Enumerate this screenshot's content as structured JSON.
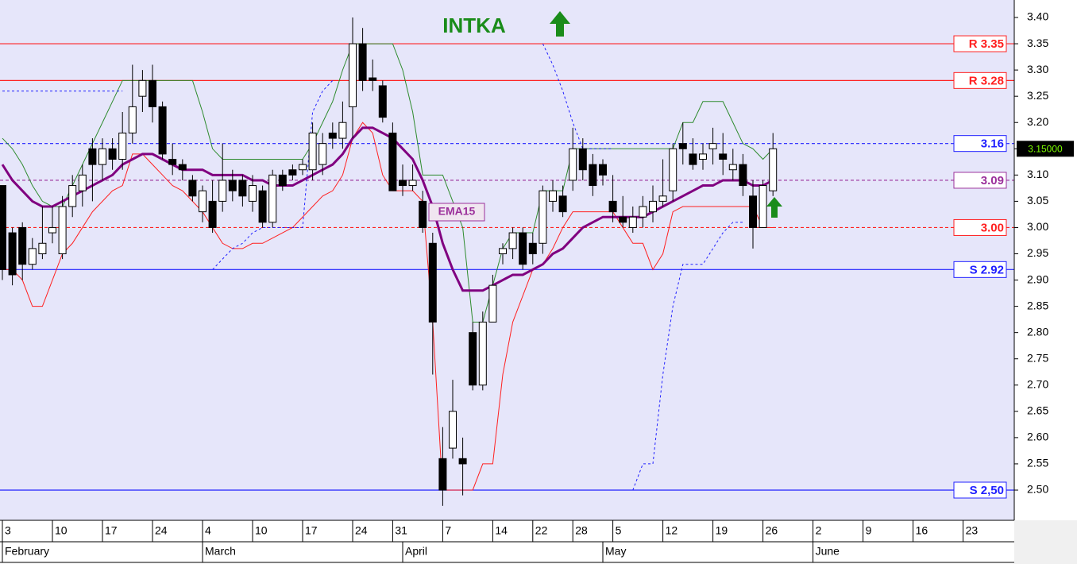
{
  "chart_data": {
    "type": "candlestick",
    "title": "INTKA",
    "ylim": [
      2.4425,
      3.4333
    ],
    "yticks": [
      {
        "value": 2.5,
        "label": "2.50"
      },
      2.55,
      {
        "value": 2.6,
        "label": "2.60"
      },
      2.65,
      {
        "value": 2.7,
        "label": "2.70"
      },
      2.75,
      {
        "value": 2.8,
        "label": "2.80"
      },
      2.85,
      {
        "value": 2.9,
        "label": "2.90"
      },
      2.95,
      {
        "value": 3.0,
        "label": "3.00"
      },
      3.05,
      {
        "value": 3.1,
        "label": "3.10"
      },
      3.15,
      {
        "value": 3.2,
        "label": "3.20"
      },
      3.25,
      {
        "value": 3.3,
        "label": "3.30"
      },
      3.35,
      {
        "value": 3.4,
        "label": "3.40"
      }
    ],
    "xticks": [
      {
        "value": 0,
        "label": "3"
      },
      {
        "value": 5,
        "label": "10"
      },
      {
        "value": 10,
        "label": "17"
      },
      {
        "value": 15,
        "label": "24"
      },
      {
        "value": 20,
        "label": "4"
      },
      {
        "value": 25,
        "label": "10"
      },
      {
        "value": 30,
        "label": "17"
      },
      {
        "value": 35,
        "label": "24"
      },
      {
        "value": 39,
        "label": "31"
      },
      {
        "value": 44,
        "label": "7"
      },
      {
        "value": 49,
        "label": "14"
      },
      {
        "value": 53,
        "label": "22"
      },
      {
        "value": 57,
        "label": "28"
      },
      {
        "value": 61,
        "label": "5"
      },
      {
        "value": 66,
        "label": "12"
      },
      {
        "value": 71,
        "label": "19"
      },
      {
        "value": 76,
        "label": "26"
      },
      {
        "value": 81,
        "label": "2"
      },
      {
        "value": 86,
        "label": "9"
      },
      {
        "value": 91,
        "label": "16"
      },
      {
        "value": 96,
        "label": "23"
      }
    ],
    "months": [
      {
        "value": 0,
        "label": "February"
      },
      {
        "value": 20,
        "label": "March"
      },
      {
        "value": 40,
        "label": "April"
      },
      {
        "value": 60,
        "label": "May"
      },
      {
        "value": 81,
        "label": "June"
      }
    ],
    "open": [
      3.08,
      2.99,
      3.0,
      2.93,
      2.95,
      2.99,
      2.95,
      3.04,
      3.07,
      3.15,
      3.12,
      3.15,
      3.13,
      3.18,
      3.25,
      3.28,
      3.23,
      3.13,
      3.12,
      3.09,
      3.03,
      3.05,
      3.05,
      3.09,
      3.09,
      3.05,
      3.07,
      3.01,
      3.1,
      3.11,
      3.11,
      3.11,
      3.12,
      3.18,
      3.17,
      3.23,
      3.35,
      3.285,
      3.27,
      3.18,
      3.09,
      3.08,
      3.05,
      2.97,
      2.56,
      2.58,
      2.56,
      2.8,
      2.7,
      2.82,
      2.95,
      2.96,
      2.99,
      2.97,
      2.97,
      3.05,
      3.06,
      3.09,
      3.15,
      3.12,
      3.12,
      3.05,
      3.02,
      3.0,
      3.02,
      3.03,
      3.05,
      3.07,
      3.16,
      3.14,
      3.13,
      3.15,
      3.14,
      3.11,
      3.12,
      3.06,
      3.0,
      3.07
    ],
    "high": [
      3.08,
      3.0,
      3.01,
      2.98,
      3.04,
      3.04,
      3.06,
      3.1,
      3.12,
      3.17,
      3.17,
      3.17,
      3.22,
      3.31,
      3.3,
      3.31,
      3.24,
      3.16,
      3.13,
      3.1,
      3.08,
      3.09,
      3.16,
      3.11,
      3.1,
      3.1,
      3.08,
      3.11,
      3.11,
      3.12,
      3.13,
      3.2,
      3.18,
      3.2,
      3.24,
      3.4,
      3.38,
      3.32,
      3.28,
      3.2,
      3.12,
      3.12,
      3.07,
      2.99,
      2.62,
      2.71,
      2.6,
      2.82,
      2.84,
      2.91,
      2.97,
      3.0,
      3.0,
      2.99,
      3.08,
      3.09,
      3.08,
      3.19,
      3.17,
      3.14,
      3.13,
      3.1,
      3.06,
      3.04,
      3.06,
      3.08,
      3.13,
      3.16,
      3.2,
      3.17,
      3.16,
      3.19,
      3.18,
      3.15,
      3.14,
      3.09,
      3.09,
      3.18
    ],
    "low": [
      2.9,
      2.89,
      2.9,
      2.92,
      2.94,
      2.97,
      2.94,
      3.02,
      3.04,
      3.05,
      3.09,
      3.11,
      3.11,
      3.16,
      3.22,
      3.2,
      3.13,
      3.1,
      3.09,
      3.05,
      3.01,
      2.99,
      3.03,
      3.05,
      3.04,
      3.03,
      3.0,
      3.0,
      3.07,
      3.09,
      3.1,
      3.09,
      3.1,
      3.15,
      3.15,
      3.17,
      3.26,
      3.26,
      3.2,
      3.07,
      3.06,
      3.07,
      2.99,
      2.72,
      2.47,
      2.56,
      2.49,
      2.69,
      2.69,
      2.82,
      2.93,
      2.94,
      2.92,
      2.93,
      2.95,
      3.03,
      3.02,
      3.07,
      3.09,
      3.06,
      3.08,
      3.01,
      3.0,
      2.99,
      3.0,
      3.01,
      3.04,
      3.05,
      3.12,
      3.11,
      3.11,
      3.12,
      3.1,
      3.09,
      3.06,
      2.96,
      3.0,
      3.06
    ],
    "close": [
      2.92,
      2.91,
      2.93,
      2.96,
      2.97,
      3.0,
      3.04,
      3.08,
      3.1,
      3.12,
      3.15,
      3.13,
      3.18,
      3.23,
      3.28,
      3.23,
      3.14,
      3.12,
      3.11,
      3.06,
      3.07,
      3.0,
      3.09,
      3.07,
      3.06,
      3.08,
      3.01,
      3.1,
      3.08,
      3.1,
      3.12,
      3.18,
      3.16,
      3.17,
      3.2,
      3.35,
      3.28,
      3.28,
      3.21,
      3.07,
      3.08,
      3.09,
      3.0,
      2.82,
      2.5,
      2.65,
      2.55,
      2.7,
      2.82,
      2.89,
      2.96,
      2.99,
      2.93,
      2.95,
      3.07,
      3.07,
      3.03,
      3.15,
      3.11,
      3.08,
      3.1,
      3.03,
      3.01,
      3.02,
      3.04,
      3.05,
      3.06,
      3.15,
      3.15,
      3.12,
      3.14,
      3.16,
      3.13,
      3.12,
      3.08,
      3.0,
      3.08,
      3.15
    ],
    "lines": [
      {
        "color": "#2e8b2e",
        "width": 1,
        "dash": "",
        "values": [
          3.17,
          3.15,
          3.12,
          3.08,
          3.05,
          3.04,
          3.04,
          3.08,
          3.12,
          3.16,
          3.2,
          3.24,
          3.28,
          3.28,
          3.28,
          3.28,
          3.28,
          3.28,
          3.28,
          3.28,
          3.22,
          3.15,
          3.13,
          3.13,
          3.13,
          3.13,
          3.13,
          3.13,
          3.13,
          3.13,
          3.13,
          3.16,
          3.2,
          3.24,
          3.3,
          3.35,
          3.35,
          3.35,
          3.35,
          3.35,
          3.3,
          3.22,
          3.1,
          3.1,
          3.1,
          3.05,
          3.0,
          2.82,
          2.82,
          2.89,
          2.96,
          2.99,
          2.99,
          2.99,
          3.07,
          3.07,
          3.07,
          3.15,
          3.15,
          3.15,
          3.15,
          3.15,
          3.15,
          3.15,
          3.15,
          3.15,
          3.15,
          3.15,
          3.2,
          3.2,
          3.24,
          3.24,
          3.24,
          3.2,
          3.16,
          3.15,
          3.13,
          3.15
        ]
      },
      {
        "color": "#ff2020",
        "width": 1,
        "dash": "",
        "values": [
          2.92,
          2.92,
          2.9,
          2.85,
          2.85,
          2.9,
          2.95,
          2.97,
          3.0,
          3.03,
          3.05,
          3.07,
          3.08,
          3.14,
          3.14,
          3.12,
          3.1,
          3.08,
          3.07,
          3.05,
          3.03,
          3.0,
          2.97,
          2.96,
          2.96,
          2.97,
          2.97,
          2.98,
          2.99,
          3.0,
          3.02,
          3.04,
          3.06,
          3.07,
          3.1,
          3.17,
          3.2,
          3.18,
          3.1,
          3.07,
          3.07,
          3.07,
          3.05,
          2.82,
          2.5,
          2.5,
          2.5,
          2.5,
          2.55,
          2.55,
          2.72,
          2.82,
          2.87,
          2.92,
          2.93,
          2.96,
          3.0,
          3.03,
          3.03,
          3.03,
          3.03,
          3.03,
          3.0,
          2.97,
          2.97,
          2.92,
          2.95,
          3.03,
          3.04,
          3.04,
          3.04,
          3.04,
          3.04,
          3.04,
          3.04,
          3.04,
          3.0,
          3.0
        ]
      },
      {
        "color": "#800080",
        "width": 3,
        "dash": "",
        "values": [
          3.12,
          3.09,
          3.07,
          3.05,
          3.04,
          3.04,
          3.05,
          3.06,
          3.07,
          3.08,
          3.09,
          3.1,
          3.12,
          3.13,
          3.14,
          3.14,
          3.13,
          3.12,
          3.11,
          3.11,
          3.11,
          3.1,
          3.1,
          3.1,
          3.1,
          3.09,
          3.09,
          3.08,
          3.08,
          3.08,
          3.09,
          3.1,
          3.11,
          3.12,
          3.14,
          3.17,
          3.19,
          3.19,
          3.18,
          3.17,
          3.15,
          3.13,
          3.09,
          3.04,
          2.97,
          2.92,
          2.88,
          2.88,
          2.88,
          2.89,
          2.9,
          2.91,
          2.91,
          2.92,
          2.93,
          2.95,
          2.96,
          2.98,
          3.0,
          3.01,
          3.02,
          3.02,
          3.02,
          3.02,
          3.02,
          3.03,
          3.04,
          3.05,
          3.06,
          3.07,
          3.08,
          3.08,
          3.09,
          3.09,
          3.09,
          3.08,
          3.08,
          3.09
        ]
      },
      {
        "color": "#2020ff",
        "width": 1,
        "dash": "3,3",
        "values": [
          3.26,
          3.26,
          3.26,
          3.26,
          3.26,
          3.26,
          3.26,
          3.26,
          3.26,
          3.26,
          3.26,
          3.26,
          3.26,
          null,
          null,
          null,
          null,
          null,
          null,
          null,
          null,
          2.92,
          2.94,
          2.96,
          2.97,
          2.99,
          3.0,
          3.0,
          3.0,
          3.0,
          3.0,
          3.22,
          3.26,
          3.28,
          null,
          null,
          null,
          null,
          null,
          null,
          null,
          null,
          null,
          null,
          null,
          null,
          null,
          null,
          null,
          null,
          null,
          null,
          null,
          null,
          3.35,
          3.31,
          3.26,
          3.2,
          3.15,
          3.15,
          3.15,
          3.15,
          null,
          2.5,
          2.55,
          2.55,
          2.72,
          2.85,
          2.93,
          2.93,
          2.93,
          2.96,
          2.99,
          3.01,
          3.01,
          null,
          null,
          null
        ]
      }
    ],
    "levels": [
      {
        "value": 3.35,
        "label": "R 3.35",
        "color": "#ff2020",
        "dash": ""
      },
      {
        "value": 3.28,
        "label": "R 3.28",
        "color": "#ff2020",
        "dash": ""
      },
      {
        "value": 3.16,
        "label": "3.16",
        "color": "#2020ff",
        "dash": "4,3"
      },
      {
        "value": 3.09,
        "label": "3.09",
        "color": "#9b309b",
        "dash": "4,3"
      },
      {
        "value": 3.0,
        "label": "3.00",
        "color": "#ff2020",
        "dash": "4,3"
      },
      {
        "value": 2.92,
        "label": "S 2.92",
        "color": "#2020ff",
        "dash": ""
      },
      {
        "value": 2.5,
        "label": "S 2,50",
        "color": "#2020ff",
        "dash": ""
      }
    ],
    "last_price": {
      "value": 3.15,
      "label": "3.15000"
    },
    "annotation": "EMA15"
  }
}
